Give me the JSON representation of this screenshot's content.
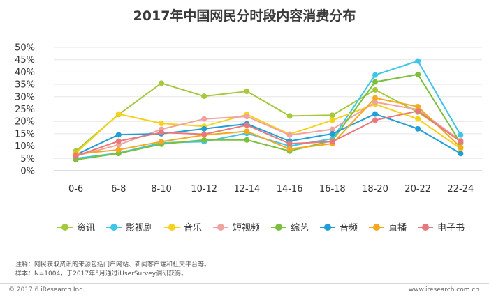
{
  "chart_data": {
    "type": "line",
    "title": "2017年中国网民分时段内容消费分布",
    "categories": [
      "0-6",
      "6-8",
      "8-10",
      "10-12",
      "12-14",
      "14-16",
      "16-18",
      "18-20",
      "20-22",
      "22-24"
    ],
    "ylim": [
      0,
      50
    ],
    "yticks": [
      "0%",
      "5%",
      "10%",
      "15%",
      "20%",
      "25%",
      "30%",
      "35%",
      "40%",
      "45%",
      "50%"
    ],
    "series": [
      {
        "name": "资讯",
        "color": "#a5c93b",
        "values": [
          8.0,
          22.8,
          35.5,
          30.2,
          32.2,
          22.2,
          22.5,
          32.8,
          23.8,
          12.0
        ]
      },
      {
        "name": "影视剧",
        "color": "#3ec6e8",
        "values": [
          5.0,
          7.2,
          11.3,
          11.8,
          15.2,
          10.0,
          13.0,
          38.8,
          44.5,
          14.5
        ]
      },
      {
        "name": "音乐",
        "color": "#f6d21c",
        "values": [
          7.2,
          23.0,
          19.2,
          18.0,
          22.8,
          14.8,
          20.5,
          27.0,
          21.0,
          9.0
        ]
      },
      {
        "name": "短视频",
        "color": "#f0a3a0",
        "values": [
          6.0,
          10.5,
          16.8,
          21.0,
          22.0,
          14.5,
          16.8,
          27.8,
          24.8,
          12.2
        ]
      },
      {
        "name": "综艺",
        "color": "#7bbf3c",
        "values": [
          4.5,
          7.0,
          10.8,
          12.5,
          12.5,
          8.0,
          12.2,
          36.0,
          39.0,
          11.2
        ]
      },
      {
        "name": "音频",
        "color": "#1f9fd6",
        "values": [
          6.5,
          14.6,
          15.0,
          17.0,
          19.0,
          12.0,
          15.0,
          23.0,
          17.0,
          7.0
        ]
      },
      {
        "name": "直播",
        "color": "#f4a91e",
        "values": [
          6.8,
          8.5,
          11.8,
          14.5,
          16.0,
          8.8,
          11.0,
          29.5,
          26.0,
          9.5
        ]
      },
      {
        "name": "电子书",
        "color": "#e8787a",
        "values": [
          6.0,
          12.0,
          15.5,
          14.8,
          18.5,
          11.0,
          11.8,
          20.5,
          24.2,
          11.8
        ]
      }
    ]
  },
  "notes": [
    "注释：网民获取资讯的来源包括门户网站、新闻客户端和社交平台等。",
    "样本：N=1004，于2017年5月通过iUserSurvey调研获得。"
  ],
  "footer": {
    "left": "© 2017.6 iResearch Inc.",
    "right": "www.iresearch.com.cn"
  }
}
